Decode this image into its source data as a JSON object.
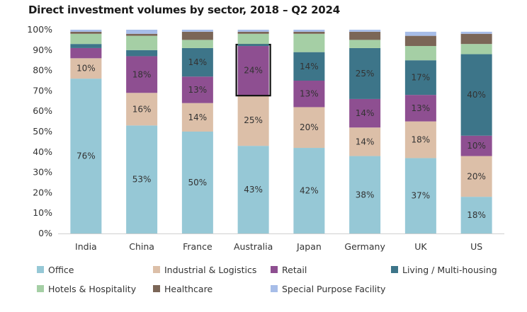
{
  "chart_data": {
    "type": "bar",
    "stacked": true,
    "title": "Direct investment volumes by sector, 2018 – Q2 2024",
    "xlabel": "",
    "ylabel": "",
    "ylim": [
      0,
      100
    ],
    "yticks": [
      "0%",
      "10%",
      "20%",
      "30%",
      "40%",
      "50%",
      "60%",
      "70%",
      "80%",
      "90%",
      "100%"
    ],
    "categories": [
      "India",
      "China",
      "France",
      "Australia",
      "Japan",
      "Germany",
      "UK",
      "US"
    ],
    "highlight": {
      "category": "Australia",
      "series": "Retail"
    },
    "legend_position": "bottom",
    "grid": false,
    "series": [
      {
        "name": "Office",
        "color": "#96c8d6",
        "values": [
          76,
          53,
          50,
          43,
          42,
          38,
          37,
          18
        ],
        "labels": [
          "76%",
          "53%",
          "50%",
          "43%",
          "42%",
          "38%",
          "37%",
          "18%"
        ]
      },
      {
        "name": "Industrial & Logistics",
        "color": "#dcbfa8",
        "values": [
          10,
          16,
          14,
          25,
          20,
          14,
          18,
          20
        ],
        "labels": [
          "10%",
          "16%",
          "14%",
          "25%",
          "20%",
          "14%",
          "18%",
          "20%"
        ]
      },
      {
        "name": "Retail",
        "color": "#8e4f91",
        "values": [
          5,
          18,
          13,
          24,
          13,
          14,
          13,
          10
        ],
        "labels": [
          "",
          "18%",
          "13%",
          "24%",
          "13%",
          "14%",
          "13%",
          "10%"
        ]
      },
      {
        "name": "Living / Multi-housing",
        "color": "#3d7589",
        "values": [
          2,
          3,
          14,
          1,
          14,
          25,
          17,
          40
        ],
        "labels": [
          "",
          "",
          "14%",
          "",
          "14%",
          "25%",
          "17%",
          "40%"
        ]
      },
      {
        "name": "Hotels & Hospitality",
        "color": "#a5cfa5",
        "values": [
          5,
          7,
          4,
          5,
          9,
          4,
          7,
          5
        ],
        "labels": [
          "",
          "",
          "",
          "",
          "",
          "",
          "",
          ""
        ]
      },
      {
        "name": "Healthcare",
        "color": "#7b6657",
        "values": [
          1,
          1,
          4,
          1,
          1,
          4,
          5,
          5
        ],
        "labels": [
          "",
          "",
          "",
          "",
          "",
          "",
          "",
          ""
        ]
      },
      {
        "name": "Special Purpose Facility",
        "color": "#a7bde8",
        "values": [
          1,
          2,
          1,
          1,
          1,
          1,
          2,
          1
        ],
        "labels": [
          "",
          "",
          "",
          "",
          "",
          "",
          "",
          ""
        ]
      }
    ]
  }
}
